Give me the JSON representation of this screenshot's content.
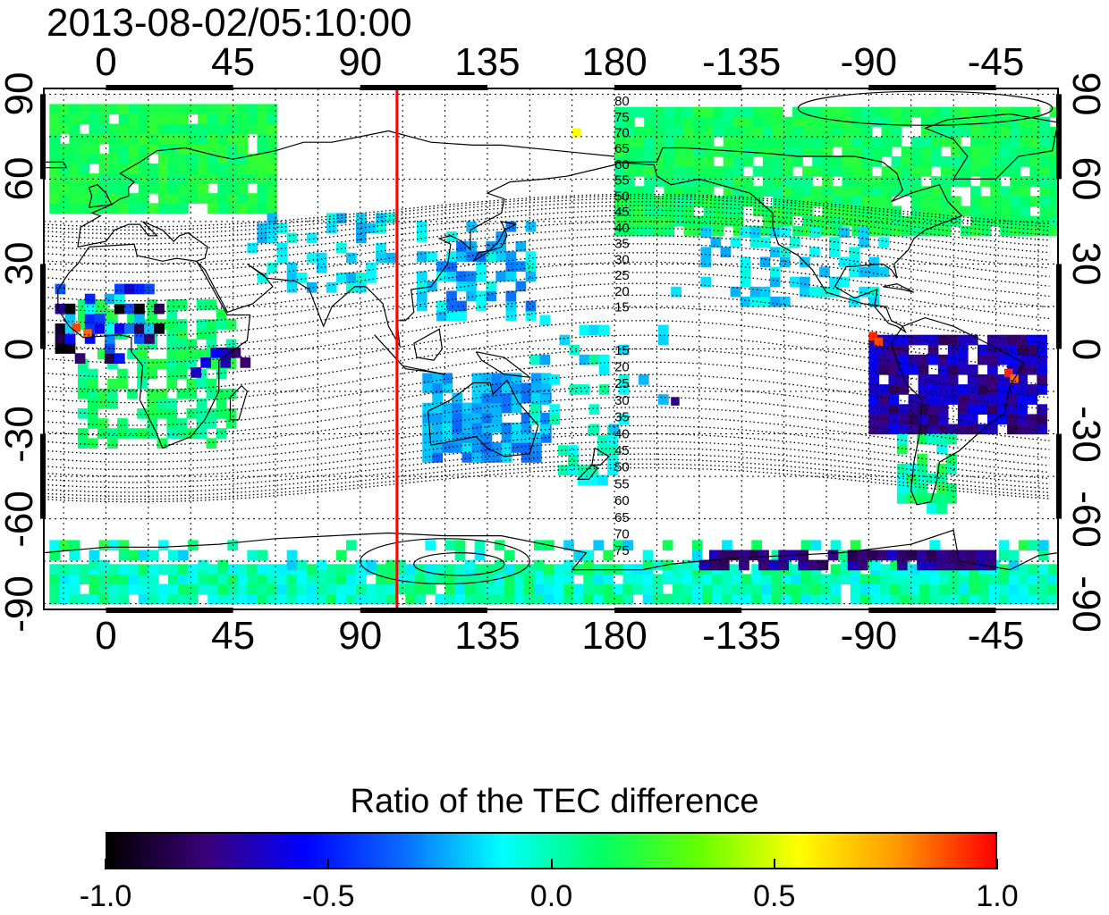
{
  "timestamp": "2013-08-02/05:10:00",
  "map": {
    "longitude_ticks": [
      "0",
      "45",
      "90",
      "135",
      "180",
      "-135",
      "-90",
      "-45"
    ],
    "longitude_values": [
      0,
      45,
      90,
      135,
      180,
      225,
      270,
      315
    ],
    "latitude_ticks_left": [
      "90",
      "60",
      "30",
      "0",
      "-30",
      "-60",
      "-90"
    ],
    "latitude_ticks_right": [
      "90",
      "60",
      "30",
      "0",
      "-30",
      "-60",
      "-90"
    ],
    "latitude_values": [
      90,
      60,
      30,
      0,
      -30,
      -60,
      -90
    ],
    "lon_range": [
      -22,
      337
    ],
    "lat_range": [
      -92,
      92
    ],
    "marker_line_longitude": 103,
    "marker_line_color": "#ff0000",
    "contour_labels_north": [
      "80",
      "75",
      "70",
      "65",
      "60",
      "55",
      "50",
      "45",
      "40",
      "35",
      "30",
      "25",
      "20",
      "15"
    ],
    "contour_labels_south": [
      "15",
      "20",
      "25",
      "30",
      "35",
      "40",
      "45",
      "50",
      "55",
      "60",
      "65",
      "70",
      "75"
    ]
  },
  "colorbar": {
    "title": "Ratio of the TEC difference",
    "ticks": [
      "-1.0",
      "-0.5",
      "0.0",
      "0.5",
      "1.0"
    ],
    "tick_values": [
      -1.0,
      -0.5,
      0.0,
      0.5,
      1.0
    ],
    "range": [
      -1.0,
      1.0
    ],
    "colors": [
      "#000000",
      "#3a0078",
      "#0000ff",
      "#0a6cff",
      "#00ffff",
      "#00ff66",
      "#66ff00",
      "#ffff00",
      "#ff9900",
      "#ff0000"
    ]
  }
}
